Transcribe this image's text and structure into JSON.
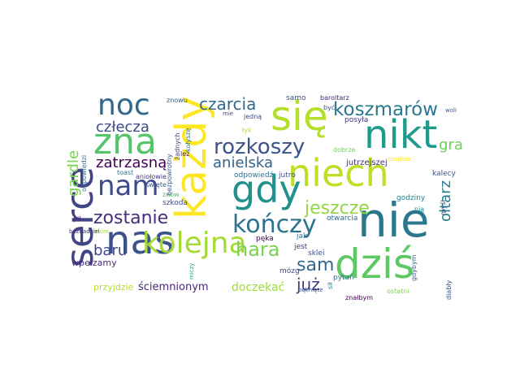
{
  "word_cloud": {
    "words": [
      {
        "text": "nie",
        "color": "#2a788e"
      },
      {
        "text": "każdy",
        "color": "#fde725"
      },
      {
        "text": "się",
        "color": "#b5de2b"
      },
      {
        "text": "nas",
        "color": "#3b528b"
      },
      {
        "text": "serce",
        "color": "#414487"
      },
      {
        "text": "dziś",
        "color": "#5ec962"
      },
      {
        "text": "gdy",
        "color": "#21918c"
      },
      {
        "text": "niech",
        "color": "#bddf26"
      },
      {
        "text": "nikt",
        "color": "#1e9b8a"
      },
      {
        "text": "zna",
        "color": "#54c568"
      },
      {
        "text": "kolejna",
        "color": "#a5db36"
      },
      {
        "text": "noc",
        "color": "#31688e"
      },
      {
        "text": "kończy",
        "color": "#2c728e"
      },
      {
        "text": "nam",
        "color": "#3e4a89"
      },
      {
        "text": "rozkoszy",
        "color": "#3b528b"
      },
      {
        "text": "koszmarów",
        "color": "#2a788e"
      },
      {
        "text": "zostanie",
        "color": "#472d7b"
      },
      {
        "text": "hara",
        "color": "#7ad151"
      },
      {
        "text": "jeszcze",
        "color": "#8fd744"
      },
      {
        "text": "sam",
        "color": "#31688e"
      },
      {
        "text": "już",
        "color": "#443983"
      },
      {
        "text": "czarcia",
        "color": "#31688e"
      },
      {
        "text": "człecza",
        "color": "#3e4a89"
      },
      {
        "text": "zatrzasną",
        "color": "#440154"
      },
      {
        "text": "anielska",
        "color": "#33638d"
      },
      {
        "text": "gardle",
        "color": "#7ad151"
      },
      {
        "text": "gra",
        "color": "#6ece58"
      },
      {
        "text": "ołtarz",
        "color": "#26828e"
      },
      {
        "text": "baru",
        "color": "#3f4788"
      },
      {
        "text": "doczekać",
        "color": "#a0da39"
      },
      {
        "text": "ściemnionym",
        "color": "#482878"
      },
      {
        "text": "wpełzamy",
        "color": "#472c7a"
      },
      {
        "text": "przyjdzie",
        "color": "#b5de2b"
      },
      {
        "text": "odpowiedź",
        "color": "#2d708e"
      },
      {
        "text": "godziny",
        "color": "#26828e"
      },
      {
        "text": "kalecy",
        "color": "#3b528b"
      },
      {
        "text": "mózg",
        "color": "#3f4788"
      },
      {
        "text": "pytań",
        "color": "#2c728e"
      },
      {
        "text": "posyła",
        "color": "#46337e"
      },
      {
        "text": "jutrzejszej",
        "color": "#472d7b"
      },
      {
        "text": "otwarcia",
        "color": "#31688e"
      },
      {
        "text": "jutro",
        "color": "#3b528b"
      },
      {
        "text": "pęka",
        "color": "#440154"
      },
      {
        "text": "jak",
        "color": "#31688e"
      },
      {
        "text": "jest",
        "color": "#443983"
      },
      {
        "text": "sklei",
        "color": "#3b528b"
      },
      {
        "text": "samo",
        "color": "#39568c"
      },
      {
        "text": "być",
        "color": "#3b528b"
      },
      {
        "text": "baroltarz",
        "color": "#482475"
      },
      {
        "text": "dobrze",
        "color": "#6ece58"
      },
      {
        "text": "szkoda",
        "color": "#3e4a89"
      },
      {
        "text": "znów",
        "color": "#4ac16d"
      },
      {
        "text": "aniołowie",
        "color": "#46327e"
      },
      {
        "text": "toast",
        "color": "#2a788e"
      },
      {
        "text": "lez",
        "color": "#482173"
      },
      {
        "text": "święte",
        "color": "#3b528b"
      },
      {
        "text": "pił",
        "color": "#482878"
      },
      {
        "text": "znowu",
        "color": "#33638d"
      },
      {
        "text": "bezpowrotny",
        "color": "#3b528b"
      },
      {
        "text": "żadnych",
        "color": "#414487"
      },
      {
        "text": "kołyszę",
        "color": "#2a788e"
      },
      {
        "text": "odpowiedzi",
        "color": "#2a788e"
      },
      {
        "text": "łyk",
        "color": "#b5de2b"
      },
      {
        "text": "jedną",
        "color": "#3e4a89"
      },
      {
        "text": "mie",
        "color": "#3e4a89"
      },
      {
        "text": "diabły",
        "color": "#3b528b"
      },
      {
        "text": "gdybym",
        "color": "#31688e"
      },
      {
        "text": "myśl",
        "color": "#3e4a89"
      },
      {
        "text": "nią",
        "color": "#21918c"
      },
      {
        "text": "sił",
        "color": "#26828e"
      },
      {
        "text": "znałbym",
        "color": "#440154"
      },
      {
        "text": "pęknięte",
        "color": "#3b528b"
      },
      {
        "text": "ostatni",
        "color": "#7ad151"
      },
      {
        "text": "miczy",
        "color": "#22a884"
      },
      {
        "text": "które",
        "color": "#9fda3a"
      },
      {
        "text": "beznadziei",
        "color": "#46337e"
      },
      {
        "text": "woli",
        "color": "#3b528b"
      },
      {
        "text": "znajdzie",
        "color": "#fde725"
      }
    ]
  }
}
